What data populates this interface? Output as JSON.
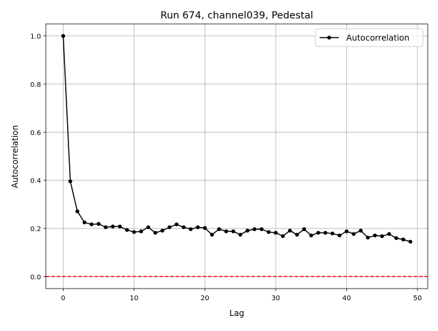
{
  "chart_data": {
    "type": "line",
    "title": "Run 674, channel039, Pedestal",
    "xlabel": "Lag",
    "ylabel": "Autocorrelation",
    "xlim": [
      -2.45,
      51.45
    ],
    "ylim": [
      -0.05,
      1.05
    ],
    "xticks": [
      0,
      10,
      20,
      30,
      40,
      50
    ],
    "yticks": [
      0.0,
      0.2,
      0.4,
      0.6,
      0.8,
      1.0
    ],
    "xtick_labels": [
      "0",
      "10",
      "20",
      "30",
      "40",
      "50"
    ],
    "ytick_labels": [
      "0.0",
      "0.2",
      "0.4",
      "0.6",
      "0.8",
      "1.0"
    ],
    "grid": true,
    "legend_position": "top-right",
    "series": [
      {
        "name": "Autocorrelation",
        "color": "#000000",
        "marker": "circle",
        "x": [
          0,
          1,
          2,
          3,
          4,
          5,
          6,
          7,
          8,
          9,
          10,
          11,
          12,
          13,
          14,
          15,
          16,
          17,
          18,
          19,
          20,
          21,
          22,
          23,
          24,
          25,
          26,
          27,
          28,
          29,
          30,
          31,
          32,
          33,
          34,
          35,
          36,
          37,
          38,
          39,
          40,
          41,
          42,
          43,
          44,
          45,
          46,
          47,
          48,
          49
        ],
        "y": [
          1.0,
          0.396,
          0.271,
          0.225,
          0.217,
          0.219,
          0.205,
          0.208,
          0.208,
          0.194,
          0.185,
          0.188,
          0.205,
          0.182,
          0.191,
          0.205,
          0.217,
          0.205,
          0.197,
          0.205,
          0.202,
          0.174,
          0.197,
          0.188,
          0.188,
          0.174,
          0.191,
          0.197,
          0.197,
          0.185,
          0.182,
          0.168,
          0.191,
          0.174,
          0.197,
          0.171,
          0.182,
          0.182,
          0.179,
          0.171,
          0.188,
          0.177,
          0.191,
          0.162,
          0.171,
          0.168,
          0.177,
          0.16,
          0.154,
          0.145
        ]
      }
    ],
    "reference_line": {
      "y": 0.0,
      "color": "#ff0000",
      "style": "dashed"
    }
  }
}
